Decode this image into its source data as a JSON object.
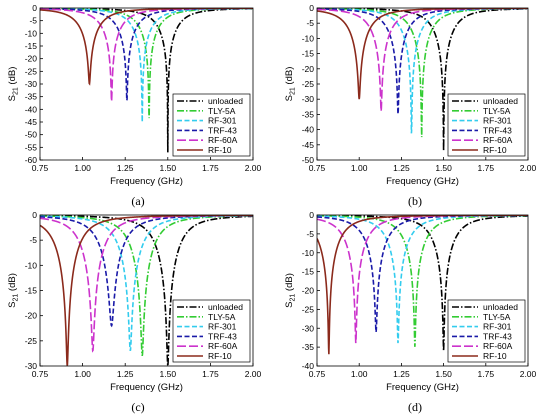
{
  "figure": {
    "legend_entries": [
      "unloaded",
      "TLY-5A",
      "RF-301",
      "TRF-43",
      "RF-60A",
      "RF-10"
    ]
  },
  "series_styles": [
    {
      "name": "unloaded",
      "color": "#000000",
      "dash": "dashdot"
    },
    {
      "name": "TLY-5A",
      "color": "#33cc33",
      "dash": "dashdot"
    },
    {
      "name": "RF-301",
      "color": "#33ccee",
      "dash": "dash"
    },
    {
      "name": "TRF-43",
      "color": "#1a1aa8",
      "dash": "dash"
    },
    {
      "name": "RF-60A",
      "color": "#cc33cc",
      "dash": "longdash"
    },
    {
      "name": "RF-10",
      "color": "#8b2a1c",
      "dash": "solid"
    }
  ],
  "chart_data": [
    {
      "type": "line",
      "panel": "a",
      "caption": "(a)",
      "xlabel": "Frequency (GHz)",
      "ylabel": "S21 (dB)",
      "xlim": [
        0.75,
        2.0
      ],
      "ylim": [
        -60,
        0
      ],
      "xticks": [
        "0.75",
        "1.00",
        "1.25",
        "1.50",
        "1.75",
        "2.00"
      ],
      "yticks": [
        "0",
        "-5",
        "-10",
        "-15",
        "-20",
        "-25",
        "-30",
        "-35",
        "-40",
        "-45",
        "-50",
        "-55",
        "-60"
      ],
      "legend_position": "bottom-right",
      "grid": false,
      "series": [
        {
          "name": "unloaded",
          "resonance_ghz": 1.5,
          "min_db": -57
        },
        {
          "name": "TLY-5A",
          "resonance_ghz": 1.39,
          "min_db": -47
        },
        {
          "name": "RF-301",
          "resonance_ghz": 1.35,
          "min_db": -45
        },
        {
          "name": "TRF-43",
          "resonance_ghz": 1.26,
          "min_db": -37
        },
        {
          "name": "RF-60A",
          "resonance_ghz": 1.17,
          "min_db": -37
        },
        {
          "name": "RF-10",
          "resonance_ghz": 1.04,
          "min_db": -30
        }
      ]
    },
    {
      "type": "line",
      "panel": "b",
      "caption": "(b)",
      "xlabel": "Frequency (GHz)",
      "ylabel": "S21 (dB)",
      "xlim": [
        0.75,
        2.0
      ],
      "ylim": [
        -50,
        0
      ],
      "xticks": [
        "0.75",
        "1.00",
        "1.25",
        "1.50",
        "1.75",
        "2.00"
      ],
      "yticks": [
        "0",
        "-5",
        "-10",
        "-15",
        "-20",
        "-25",
        "-30",
        "-35",
        "-40",
        "-45",
        "-50"
      ],
      "legend_position": "bottom-right",
      "grid": false,
      "series": [
        {
          "name": "unloaded",
          "resonance_ghz": 1.5,
          "min_db": -47
        },
        {
          "name": "TLY-5A",
          "resonance_ghz": 1.37,
          "min_db": -43
        },
        {
          "name": "RF-301",
          "resonance_ghz": 1.31,
          "min_db": -43
        },
        {
          "name": "TRF-43",
          "resonance_ghz": 1.23,
          "min_db": -35
        },
        {
          "name": "RF-60A",
          "resonance_ghz": 1.13,
          "min_db": -34
        },
        {
          "name": "RF-10",
          "resonance_ghz": 1.0,
          "min_db": -30
        }
      ]
    },
    {
      "type": "line",
      "panel": "c",
      "caption": "(c)",
      "xlabel": "Frequency (GHz)",
      "ylabel": "S21 (dB)",
      "xlim": [
        0.75,
        2.0
      ],
      "ylim": [
        -30,
        0
      ],
      "xticks": [
        "0.75",
        "1.00",
        "1.25",
        "1.50",
        "1.75",
        "2.00"
      ],
      "yticks": [
        "0",
        "-5",
        "-10",
        "-15",
        "-20",
        "-25",
        "-30"
      ],
      "legend_position": "bottom-right",
      "grid": false,
      "series": [
        {
          "name": "unloaded",
          "resonance_ghz": 1.5,
          "min_db": -30
        },
        {
          "name": "TLY-5A",
          "resonance_ghz": 1.35,
          "min_db": -28
        },
        {
          "name": "RF-301",
          "resonance_ghz": 1.28,
          "min_db": -27
        },
        {
          "name": "TRF-43",
          "resonance_ghz": 1.17,
          "min_db": -22
        },
        {
          "name": "RF-60A",
          "resonance_ghz": 1.06,
          "min_db": -27
        },
        {
          "name": "RF-10",
          "resonance_ghz": 0.91,
          "min_db": -30
        }
      ]
    },
    {
      "type": "line",
      "panel": "d",
      "caption": "(d)",
      "xlabel": "Frequency (GHz)",
      "ylabel": "S21 (dB)",
      "xlim": [
        0.75,
        2.0
      ],
      "ylim": [
        -40,
        0
      ],
      "xticks": [
        "0.75",
        "1.00",
        "1.25",
        "1.50",
        "1.75",
        "2.00"
      ],
      "yticks": [
        "0",
        "-5",
        "-10",
        "-15",
        "-20",
        "-25",
        "-30",
        "-35",
        "-40"
      ],
      "legend_position": "bottom-right",
      "grid": false,
      "series": [
        {
          "name": "unloaded",
          "resonance_ghz": 1.5,
          "min_db": -36
        },
        {
          "name": "TLY-5A",
          "resonance_ghz": 1.33,
          "min_db": -35
        },
        {
          "name": "RF-301",
          "resonance_ghz": 1.23,
          "min_db": -34
        },
        {
          "name": "TRF-43",
          "resonance_ghz": 1.1,
          "min_db": -31
        },
        {
          "name": "RF-60A",
          "resonance_ghz": 0.98,
          "min_db": -34
        },
        {
          "name": "RF-10",
          "resonance_ghz": 0.82,
          "min_db": -37
        }
      ]
    }
  ]
}
